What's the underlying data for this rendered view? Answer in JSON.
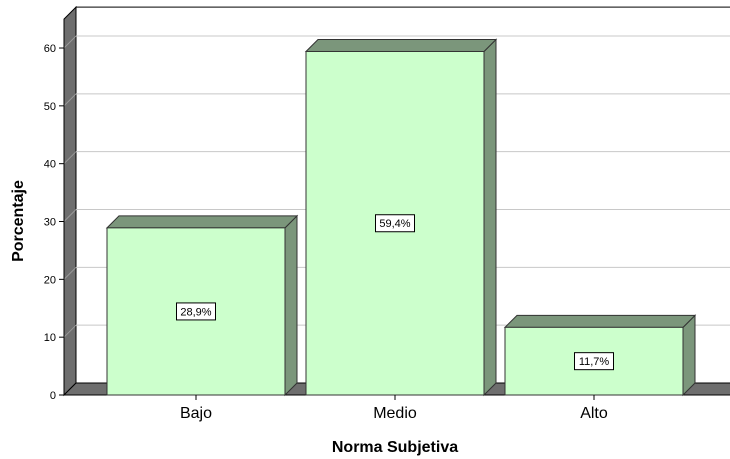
{
  "chart_data": {
    "type": "bar",
    "categories": [
      "Bajo",
      "Medio",
      "Alto"
    ],
    "values": [
      28.9,
      59.4,
      11.7
    ],
    "data_labels": [
      "28,9%",
      "59,4%",
      "11,7%"
    ],
    "xlabel": "Norma Subjetiva",
    "ylabel": "Porcentaje",
    "ylim": [
      0,
      65
    ],
    "yticks": [
      "0",
      "10",
      "20",
      "30",
      "40",
      "50",
      "60"
    ],
    "grid": true,
    "style": "3d",
    "colors": {
      "bar_front": "#ccffcc",
      "bar_side": "#7b967b",
      "wall": "#6e6e6e",
      "grid": "#c8c8c8"
    }
  }
}
